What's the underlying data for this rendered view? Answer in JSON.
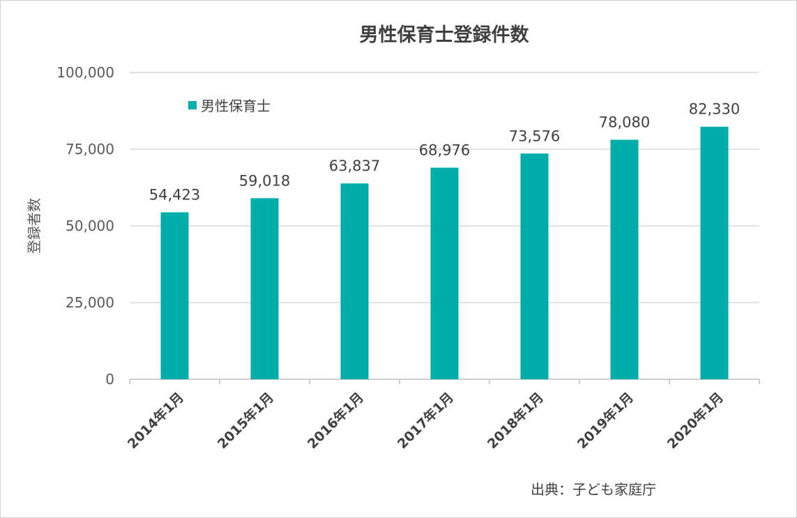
{
  "chart_data": {
    "type": "bar",
    "title": "男性保育士登録件数",
    "ylabel": "登録者数",
    "xlabel": "",
    "categories": [
      "2014年1月",
      "2015年1月",
      "2016年1月",
      "2017年1月",
      "2018年1月",
      "2019年1月",
      "2020年1月"
    ],
    "series": [
      {
        "name": "男性保育士",
        "color": "#00AEA9",
        "values": [
          54423,
          59018,
          63837,
          68976,
          73576,
          78080,
          82330
        ],
        "labels": [
          "54,423",
          "59,018",
          "63,837",
          "68,976",
          "73,576",
          "78,080",
          "82,330"
        ]
      }
    ],
    "ylim": [
      0,
      100000
    ],
    "yticks": [
      0,
      25000,
      50000,
      75000,
      100000
    ],
    "ytick_labels": [
      "0",
      "25,000",
      "50,000",
      "75,000",
      "100,000"
    ],
    "grid": true,
    "legend_position": "top-left"
  },
  "source": "出典：子ども家庭庁"
}
